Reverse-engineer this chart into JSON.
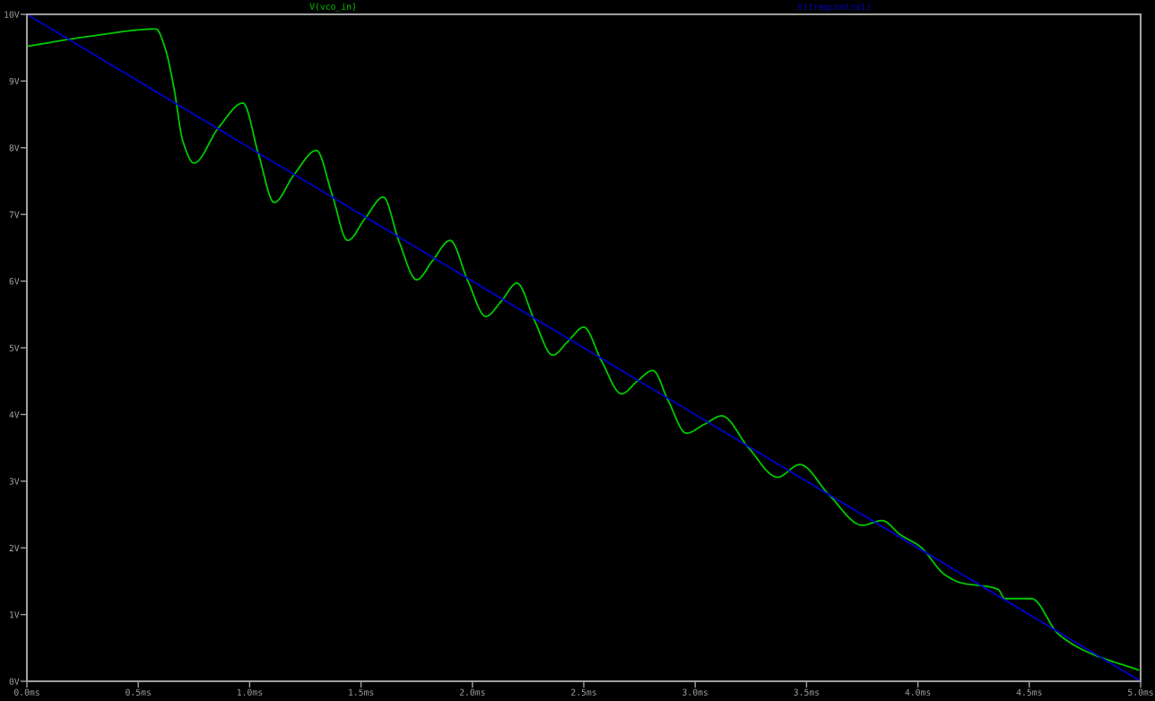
{
  "chart_data": {
    "type": "line",
    "xlim": [
      0,
      5
    ],
    "ylim": [
      0,
      10
    ],
    "xticks": [
      {
        "value": 0,
        "label": "0.0ms"
      },
      {
        "value": 0.5,
        "label": "0.5ms"
      },
      {
        "value": 1,
        "label": "1.0ms"
      },
      {
        "value": 1.5,
        "label": "1.5ms"
      },
      {
        "value": 2,
        "label": "2.0ms"
      },
      {
        "value": 2.5,
        "label": "2.5ms"
      },
      {
        "value": 3,
        "label": "3.0ms"
      },
      {
        "value": 3.5,
        "label": "3.5ms"
      },
      {
        "value": 4,
        "label": "4.0ms"
      },
      {
        "value": 4.5,
        "label": "4.5ms"
      },
      {
        "value": 5,
        "label": "5.0ms"
      }
    ],
    "yticks": [
      {
        "value": 0,
        "label": "0V"
      },
      {
        "value": 1,
        "label": "1V"
      },
      {
        "value": 2,
        "label": "2V"
      },
      {
        "value": 3,
        "label": "3V"
      },
      {
        "value": 4,
        "label": "4V"
      },
      {
        "value": 5,
        "label": "5V"
      },
      {
        "value": 6,
        "label": "6V"
      },
      {
        "value": 7,
        "label": "7V"
      },
      {
        "value": 8,
        "label": "8V"
      },
      {
        "value": 9,
        "label": "9V"
      },
      {
        "value": 10,
        "label": "10V"
      }
    ],
    "grid": false,
    "marker": "none",
    "line_style": "solid",
    "series": [
      {
        "name": "V(vco_in)",
        "color": "#00c800",
        "x": [
          0,
          0.3,
          0.58,
          0.62,
          0.66,
          0.7,
          0.75,
          0.86,
          0.97,
          1.04,
          1.11,
          1.2,
          1.3,
          1.37,
          1.44,
          1.52,
          1.6,
          1.67,
          1.75,
          1.82,
          1.9,
          1.98,
          2.06,
          2.13,
          2.2,
          2.28,
          2.36,
          2.43,
          2.5,
          2.58,
          2.67,
          2.74,
          2.81,
          2.88,
          2.96,
          3.04,
          3.12,
          3.24,
          3.37,
          3.47,
          3.6,
          3.75,
          3.84,
          3.92,
          4.01,
          4.12,
          4.19,
          4.36,
          4.39,
          4.51,
          4.63,
          4.76,
          4.99
        ],
        "values": [
          9.52,
          9.68,
          9.78,
          9.5,
          8.9,
          8.1,
          7.77,
          8.3,
          8.67,
          7.9,
          7.18,
          7.6,
          7.96,
          7.3,
          6.61,
          6.95,
          7.26,
          6.6,
          6.02,
          6.3,
          6.61,
          6.0,
          5.47,
          5.7,
          5.97,
          5.4,
          4.89,
          5.1,
          5.31,
          4.8,
          4.31,
          4.5,
          4.66,
          4.2,
          3.72,
          3.85,
          3.98,
          3.5,
          3.06,
          3.25,
          2.8,
          2.34,
          2.41,
          2.2,
          2.02,
          1.6,
          1.48,
          1.38,
          1.24,
          1.24,
          0.71,
          0.44,
          0.17
        ]
      },
      {
        "name": "V(freqcontrol)",
        "color": "#0000c8",
        "x": [
          0,
          5
        ],
        "values": [
          10,
          0
        ]
      }
    ]
  }
}
